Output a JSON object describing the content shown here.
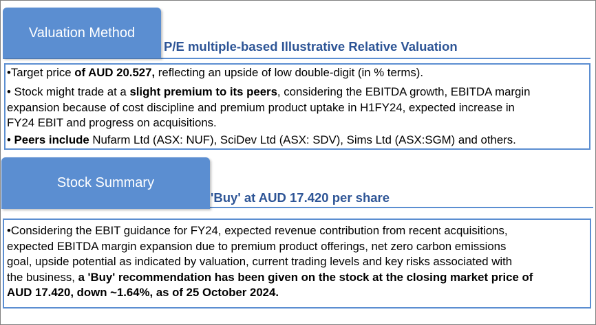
{
  "valuation": {
    "tab_label": "Valuation Method",
    "heading": "P/E multiple-based Illustrative Relative Valuation",
    "bullets": [
      {
        "prefix": "•Target price ",
        "bold": "of AUD 20.527,",
        "suffix": " reflecting an upside of low double-digit (in % terms)."
      },
      {
        "line1_prefix": "• Stock might trade at a ",
        "line1_bold": "slight premium to its peers",
        "line1_suffix": ", considering the EBITDA growth, EBITDA margin",
        "line2": "expansion because of cost discipline and premium product uptake in H1FY24, expected increase in",
        "line3": "FY24 EBIT and progress on acquisitions."
      },
      {
        "prefix": "• ",
        "bold": "Peers include",
        "suffix": " Nufarm Ltd (ASX: NUF), SciDev Ltd (ASX: SDV), Sims Ltd (ASX:SGM) and others."
      }
    ]
  },
  "stock_summary": {
    "tab_label": "Stock Summary",
    "heading": "'Buy' at AUD 17.420 per share",
    "paragraph": {
      "line1": "•Considering the EBIT guidance for FY24, expected revenue contribution from recent acquisitions,",
      "line2": "expected EBITDA margin expansion due to premium product offerings, net zero carbon emissions",
      "line3": "goal, upside potential as indicated by valuation, current trading levels and key risks associated with",
      "line4_prefix": "the business, ",
      "line4_bold": "a 'Buy' recommendation has been given on the stock at the closing market price of",
      "line5_bold": "AUD 17.420, down ~1.64%, as of 25 October 2024."
    }
  }
}
